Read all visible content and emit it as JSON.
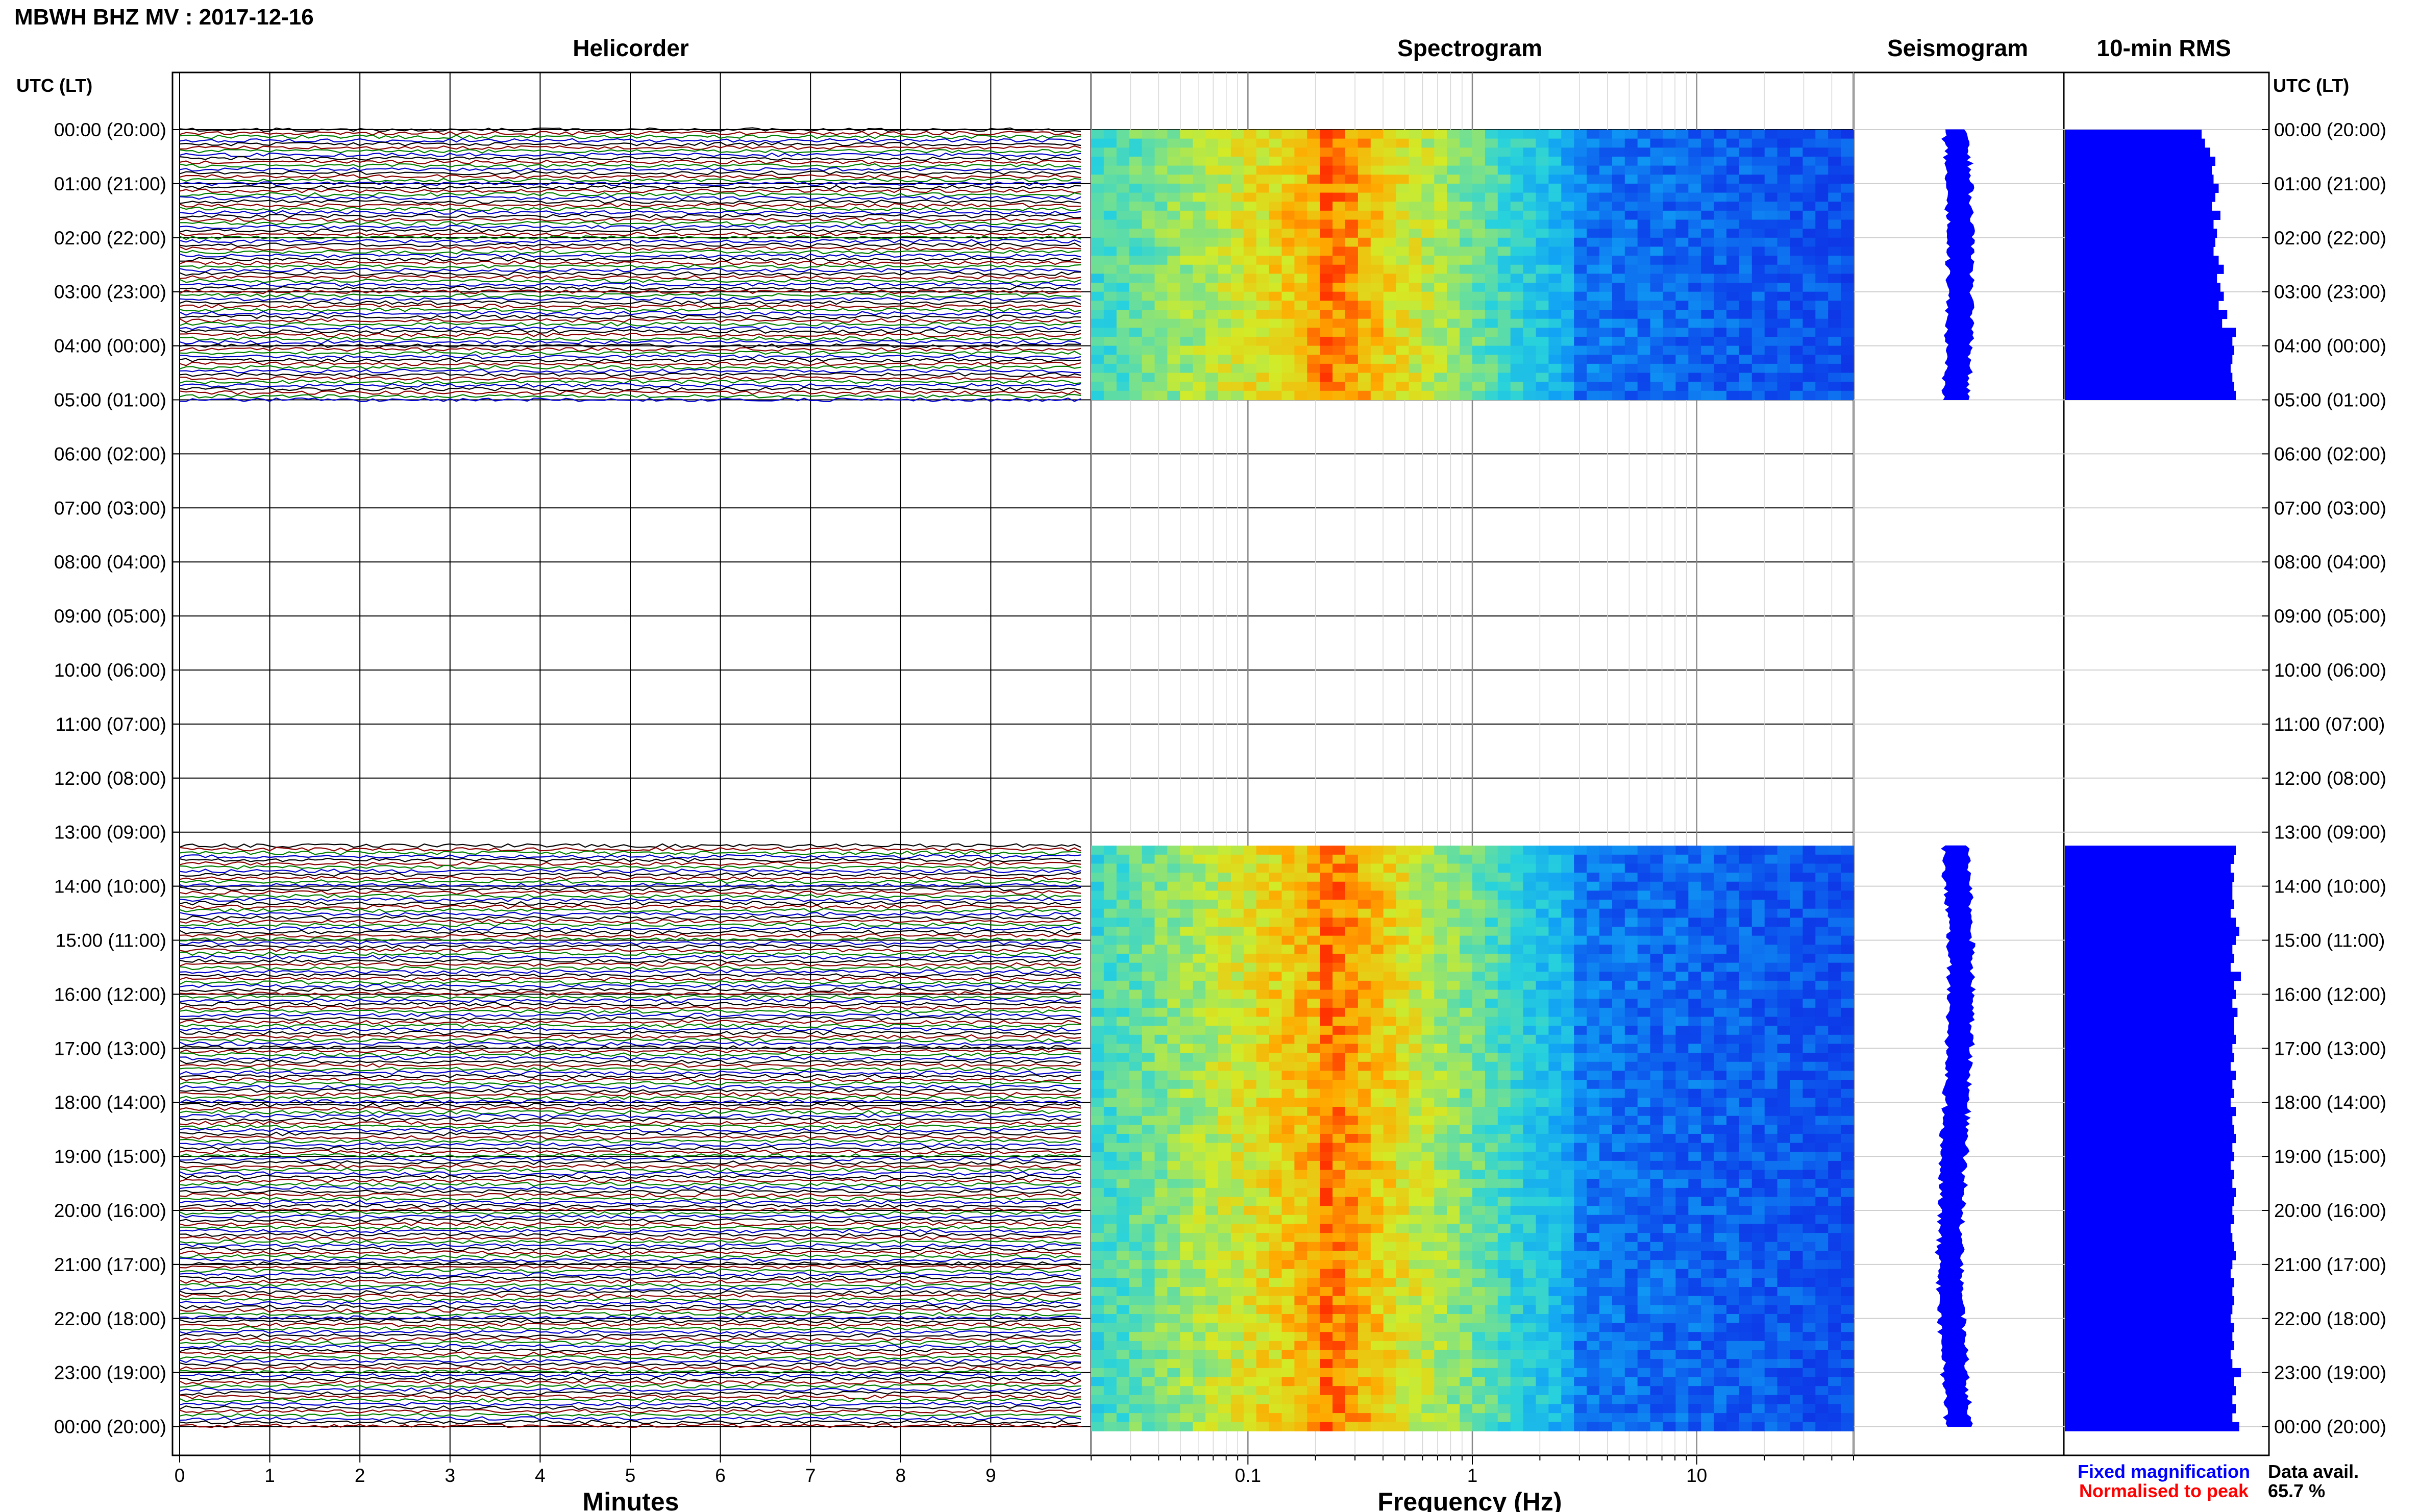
{
  "header": {
    "title": "MBWH BHZ MV : 2017-12-16"
  },
  "panels": {
    "helicorder": "Helicorder",
    "spectrogram": "Spectrogram",
    "seismogram": "Seismogram",
    "rms": "10-min RMS"
  },
  "axes": {
    "y_left_label": "UTC (LT)",
    "y_right_label": "UTC (LT)",
    "helicorder_xlabel": "Minutes",
    "spectrogram_xlabel": "Frequency (Hz)"
  },
  "legend": {
    "fixed": "Fixed magnification",
    "normalised": "Normalised to peak",
    "fixed_color": "#0000ff",
    "normalised_color": "#ff0000"
  },
  "data_availability": {
    "label": "Data avail.",
    "value": "65.7 %"
  },
  "colors": {
    "trace_cycle": [
      "#000000",
      "#8b0000",
      "#008000",
      "#0000cd"
    ],
    "rms_bar": "#0000ff",
    "spectro_low": "#0a1edc",
    "spectro_high": "#ff2000"
  },
  "chart_data": [
    {
      "type": "line",
      "name": "helicorder",
      "title": "Helicorder",
      "xlabel": "Minutes",
      "ylabel": "UTC (LT)",
      "x_ticks": [
        "0",
        "1",
        "2",
        "3",
        "4",
        "5",
        "6",
        "7",
        "8",
        "9"
      ],
      "xlim": [
        0,
        10
      ],
      "y_ticks": [
        "00:00 (20:00)",
        "01:00 (21:00)",
        "02:00 (22:00)",
        "03:00 (23:00)",
        "04:00 (00:00)",
        "05:00 (01:00)",
        "06:00 (02:00)",
        "07:00 (03:00)",
        "08:00 (04:00)",
        "09:00 (05:00)",
        "10:00 (06:00)",
        "11:00 (07:00)",
        "12:00 (08:00)",
        "13:00 (09:00)",
        "14:00 (10:00)",
        "15:00 (11:00)",
        "16:00 (12:00)",
        "17:00 (13:00)",
        "18:00 (14:00)",
        "19:00 (15:00)",
        "20:00 (16:00)",
        "21:00 (17:00)",
        "22:00 (18:00)",
        "23:00 (19:00)",
        "00:00 (20:00)"
      ],
      "data_segments_hours": [
        [
          0,
          5
        ],
        [
          13.25,
          24
        ]
      ],
      "grid": true
    },
    {
      "type": "heatmap",
      "name": "spectrogram",
      "title": "Spectrogram",
      "xlabel": "Frequency (Hz)",
      "x_scale": "log",
      "xlim": [
        0.02,
        50
      ],
      "x_ticks": [
        0.1,
        1,
        10
      ],
      "x_tick_labels": [
        "0.1",
        "1",
        "10"
      ],
      "peak_frequency_hz": 0.22,
      "data_segments_hours": [
        [
          0,
          5
        ],
        [
          13.25,
          24
        ]
      ]
    },
    {
      "type": "line",
      "name": "seismogram",
      "title": "Seismogram",
      "data_segments_hours": [
        [
          0,
          5
        ],
        [
          13.25,
          24
        ]
      ]
    },
    {
      "type": "bar",
      "name": "10-min RMS",
      "title": "10-min RMS",
      "orientation": "horizontal",
      "interval_minutes": 10,
      "segments": [
        {
          "start_hour": 0,
          "values": [
            0.8,
            0.82,
            0.85,
            0.88,
            0.86,
            0.87,
            0.9,
            0.88,
            0.86,
            0.91,
            0.87,
            0.89,
            0.88,
            0.87,
            0.9,
            0.93,
            0.89,
            0.91,
            0.93,
            0.9,
            0.95,
            0.92,
            1.0,
            0.98,
            0.99,
            0.98,
            0.97,
            0.98,
            0.99,
            1.0
          ]
        },
        {
          "start_hour": 13.25,
          "values": [
            1.0,
            0.99,
            0.97,
            0.99,
            0.98,
            0.98,
            0.99,
            0.97,
            1.0,
            1.02,
            1.0,
            0.98,
            0.99,
            0.97,
            1.03,
            0.99,
            1.0,
            0.98,
            1.01,
            0.99,
            0.99,
            1.0,
            0.98,
            0.99,
            0.97,
            1.0,
            0.98,
            0.99,
            0.97,
            1.0,
            0.98,
            0.99,
            1.0,
            0.98,
            0.99,
            0.97,
            0.99,
            0.98,
            1.0,
            0.99,
            0.98,
            0.99,
            0.97,
            0.98,
            0.99,
            1.0,
            0.98,
            0.97,
            0.99,
            0.98,
            0.99,
            0.98,
            0.97,
            0.99,
            0.98,
            0.99,
            0.97,
            0.98,
            1.03,
            0.99,
            1.0,
            0.98,
            1.0,
            0.98,
            1.02
          ]
        }
      ],
      "xlim": [
        0,
        1.2
      ]
    }
  ]
}
